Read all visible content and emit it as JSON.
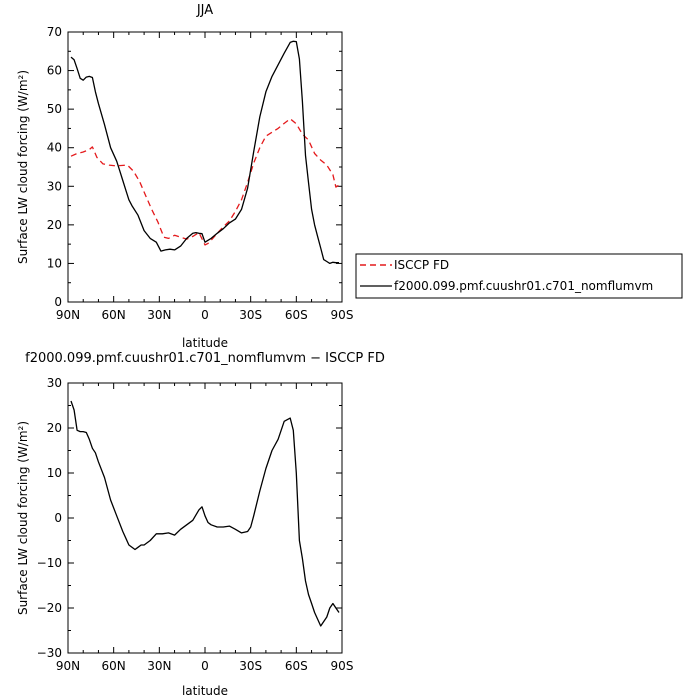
{
  "chart_data": [
    {
      "type": "line",
      "title": "JJA",
      "xlabel": "latitude",
      "ylabel": "Surface LW cloud forcing (W/m²)",
      "xlim": [
        90,
        -90
      ],
      "ylim": [
        0,
        70
      ],
      "x_ticks": [
        90,
        60,
        30,
        0,
        -30,
        -60,
        -90
      ],
      "x_tick_labels": [
        "90N",
        "60N",
        "30N",
        "0",
        "30S",
        "60S",
        "90S"
      ],
      "y_ticks": [
        0,
        10,
        20,
        30,
        40,
        50,
        60,
        70
      ],
      "y_tick_labels": [
        "0",
        "10",
        "20",
        "30",
        "40",
        "50",
        "60",
        "70"
      ],
      "legend_position": "right",
      "series": [
        {
          "name": "ISCCP FD",
          "color": "#e41a1c",
          "dash": "dashed",
          "x": [
            88,
            84,
            80,
            76,
            74,
            71,
            67,
            63,
            59,
            55,
            51,
            47,
            43,
            39,
            35,
            31,
            27,
            24,
            20,
            16,
            12,
            8,
            4,
            0,
            -2,
            -4,
            -8,
            -12,
            -16,
            -20,
            -24,
            -28,
            -32,
            -36,
            -40,
            -44,
            -48,
            -52,
            -56,
            -60,
            -64,
            -68,
            -72,
            -76,
            -80,
            -84,
            -86,
            -88
          ],
          "y": [
            37.8,
            38.5,
            38.9,
            39.5,
            40.2,
            37.5,
            35.8,
            35.5,
            35.3,
            35.4,
            35.5,
            33.9,
            31.3,
            27.6,
            24.0,
            20.8,
            16.8,
            16.5,
            17.3,
            16.8,
            16.3,
            17.0,
            18.0,
            14.8,
            15.2,
            16.0,
            17.8,
            19.5,
            21.0,
            23.5,
            26.5,
            31.0,
            36.0,
            40.0,
            43.0,
            44.0,
            45.0,
            46.3,
            47.5,
            46.2,
            43.5,
            42.0,
            38.5,
            36.8,
            35.5,
            33.0,
            29.8,
            30.3
          ]
        },
        {
          "name": "f2000.099.pmf.cuushr01.c701_nomflumvm",
          "color": "#000000",
          "dash": "solid",
          "x": [
            88,
            86,
            84,
            82,
            80,
            78,
            76,
            74,
            72,
            70,
            66,
            62,
            58,
            56,
            54,
            52,
            50,
            48,
            44,
            40,
            36,
            32,
            29,
            26,
            23,
            20,
            16,
            12,
            8,
            6,
            4,
            2,
            0,
            -2,
            -4,
            -8,
            -12,
            -16,
            -20,
            -24,
            -28,
            -32,
            -36,
            -40,
            -44,
            -48,
            -52,
            -56,
            -58,
            -60,
            -62,
            -64,
            -66,
            -68,
            -70,
            -72,
            -74,
            -76,
            -78,
            -80,
            -82,
            -84,
            -86,
            -88
          ],
          "y": [
            63.5,
            62.8,
            60.5,
            58.0,
            57.5,
            58.3,
            58.5,
            58.2,
            54.5,
            51.5,
            46.0,
            40.0,
            36.5,
            34.0,
            31.5,
            29.0,
            26.5,
            25.0,
            22.5,
            18.5,
            16.5,
            15.5,
            13.2,
            13.5,
            13.7,
            13.5,
            14.5,
            16.5,
            17.8,
            18.0,
            17.8,
            17.7,
            15.5,
            16.0,
            16.5,
            17.8,
            19.0,
            20.5,
            21.5,
            24.0,
            29.5,
            39.0,
            48.0,
            54.5,
            58.5,
            61.5,
            64.5,
            67.3,
            67.6,
            67.5,
            63.0,
            52.0,
            38.0,
            31.0,
            24.0,
            20.0,
            17.0,
            14.0,
            11.0,
            10.5,
            10.0,
            10.3,
            10.2,
            10.2
          ]
        }
      ]
    },
    {
      "type": "line",
      "title": "f2000.099.pmf.cuushr01.c701_nomflumvm − ISCCP FD",
      "xlabel": "latitude",
      "ylabel": "Surface LW cloud forcing (W/m²)",
      "xlim": [
        90,
        -90
      ],
      "ylim": [
        -30,
        30
      ],
      "x_ticks": [
        90,
        60,
        30,
        0,
        -30,
        -60,
        -90
      ],
      "x_tick_labels": [
        "90N",
        "60N",
        "30N",
        "0",
        "30S",
        "60S",
        "90S"
      ],
      "y_ticks": [
        -30,
        -20,
        -10,
        0,
        10,
        20,
        30
      ],
      "y_tick_labels": [
        "−30",
        "−20",
        "−10",
        "0",
        "10",
        "20",
        "30"
      ],
      "series": [
        {
          "color": "#000000",
          "dash": "solid",
          "x": [
            88,
            86,
            84,
            82,
            80,
            78,
            76,
            74,
            72,
            70,
            66,
            62,
            58,
            54,
            50,
            46,
            44,
            42,
            40,
            36,
            32,
            28,
            24,
            20,
            16,
            12,
            8,
            4,
            2,
            0,
            -2,
            -4,
            -8,
            -12,
            -16,
            -20,
            -24,
            -28,
            -30,
            -32,
            -36,
            -40,
            -44,
            -48,
            -52,
            -56,
            -58,
            -60,
            -62,
            -64,
            -66,
            -68,
            -70,
            -72,
            -76,
            -80,
            -82,
            -84,
            -86,
            -88
          ],
          "y": [
            26.0,
            24.0,
            19.5,
            19.2,
            19.2,
            19.0,
            17.5,
            15.5,
            14.5,
            12.5,
            9.0,
            4.0,
            0.5,
            -3.0,
            -6.0,
            -7.0,
            -6.5,
            -6.0,
            -6.0,
            -5.0,
            -3.5,
            -3.5,
            -3.3,
            -3.8,
            -2.5,
            -1.5,
            -0.5,
            1.8,
            2.5,
            0.5,
            -1.0,
            -1.5,
            -2.0,
            -2.0,
            -1.8,
            -2.5,
            -3.3,
            -3.0,
            -2.0,
            0.5,
            6.0,
            11.0,
            15.0,
            17.5,
            21.5,
            22.2,
            19.5,
            10.0,
            -5.0,
            -9.0,
            -14.0,
            -17.0,
            -19.0,
            -21.0,
            -24.0,
            -22.0,
            -20.0,
            -19.0,
            -20.0,
            -21.0
          ]
        }
      ]
    }
  ]
}
